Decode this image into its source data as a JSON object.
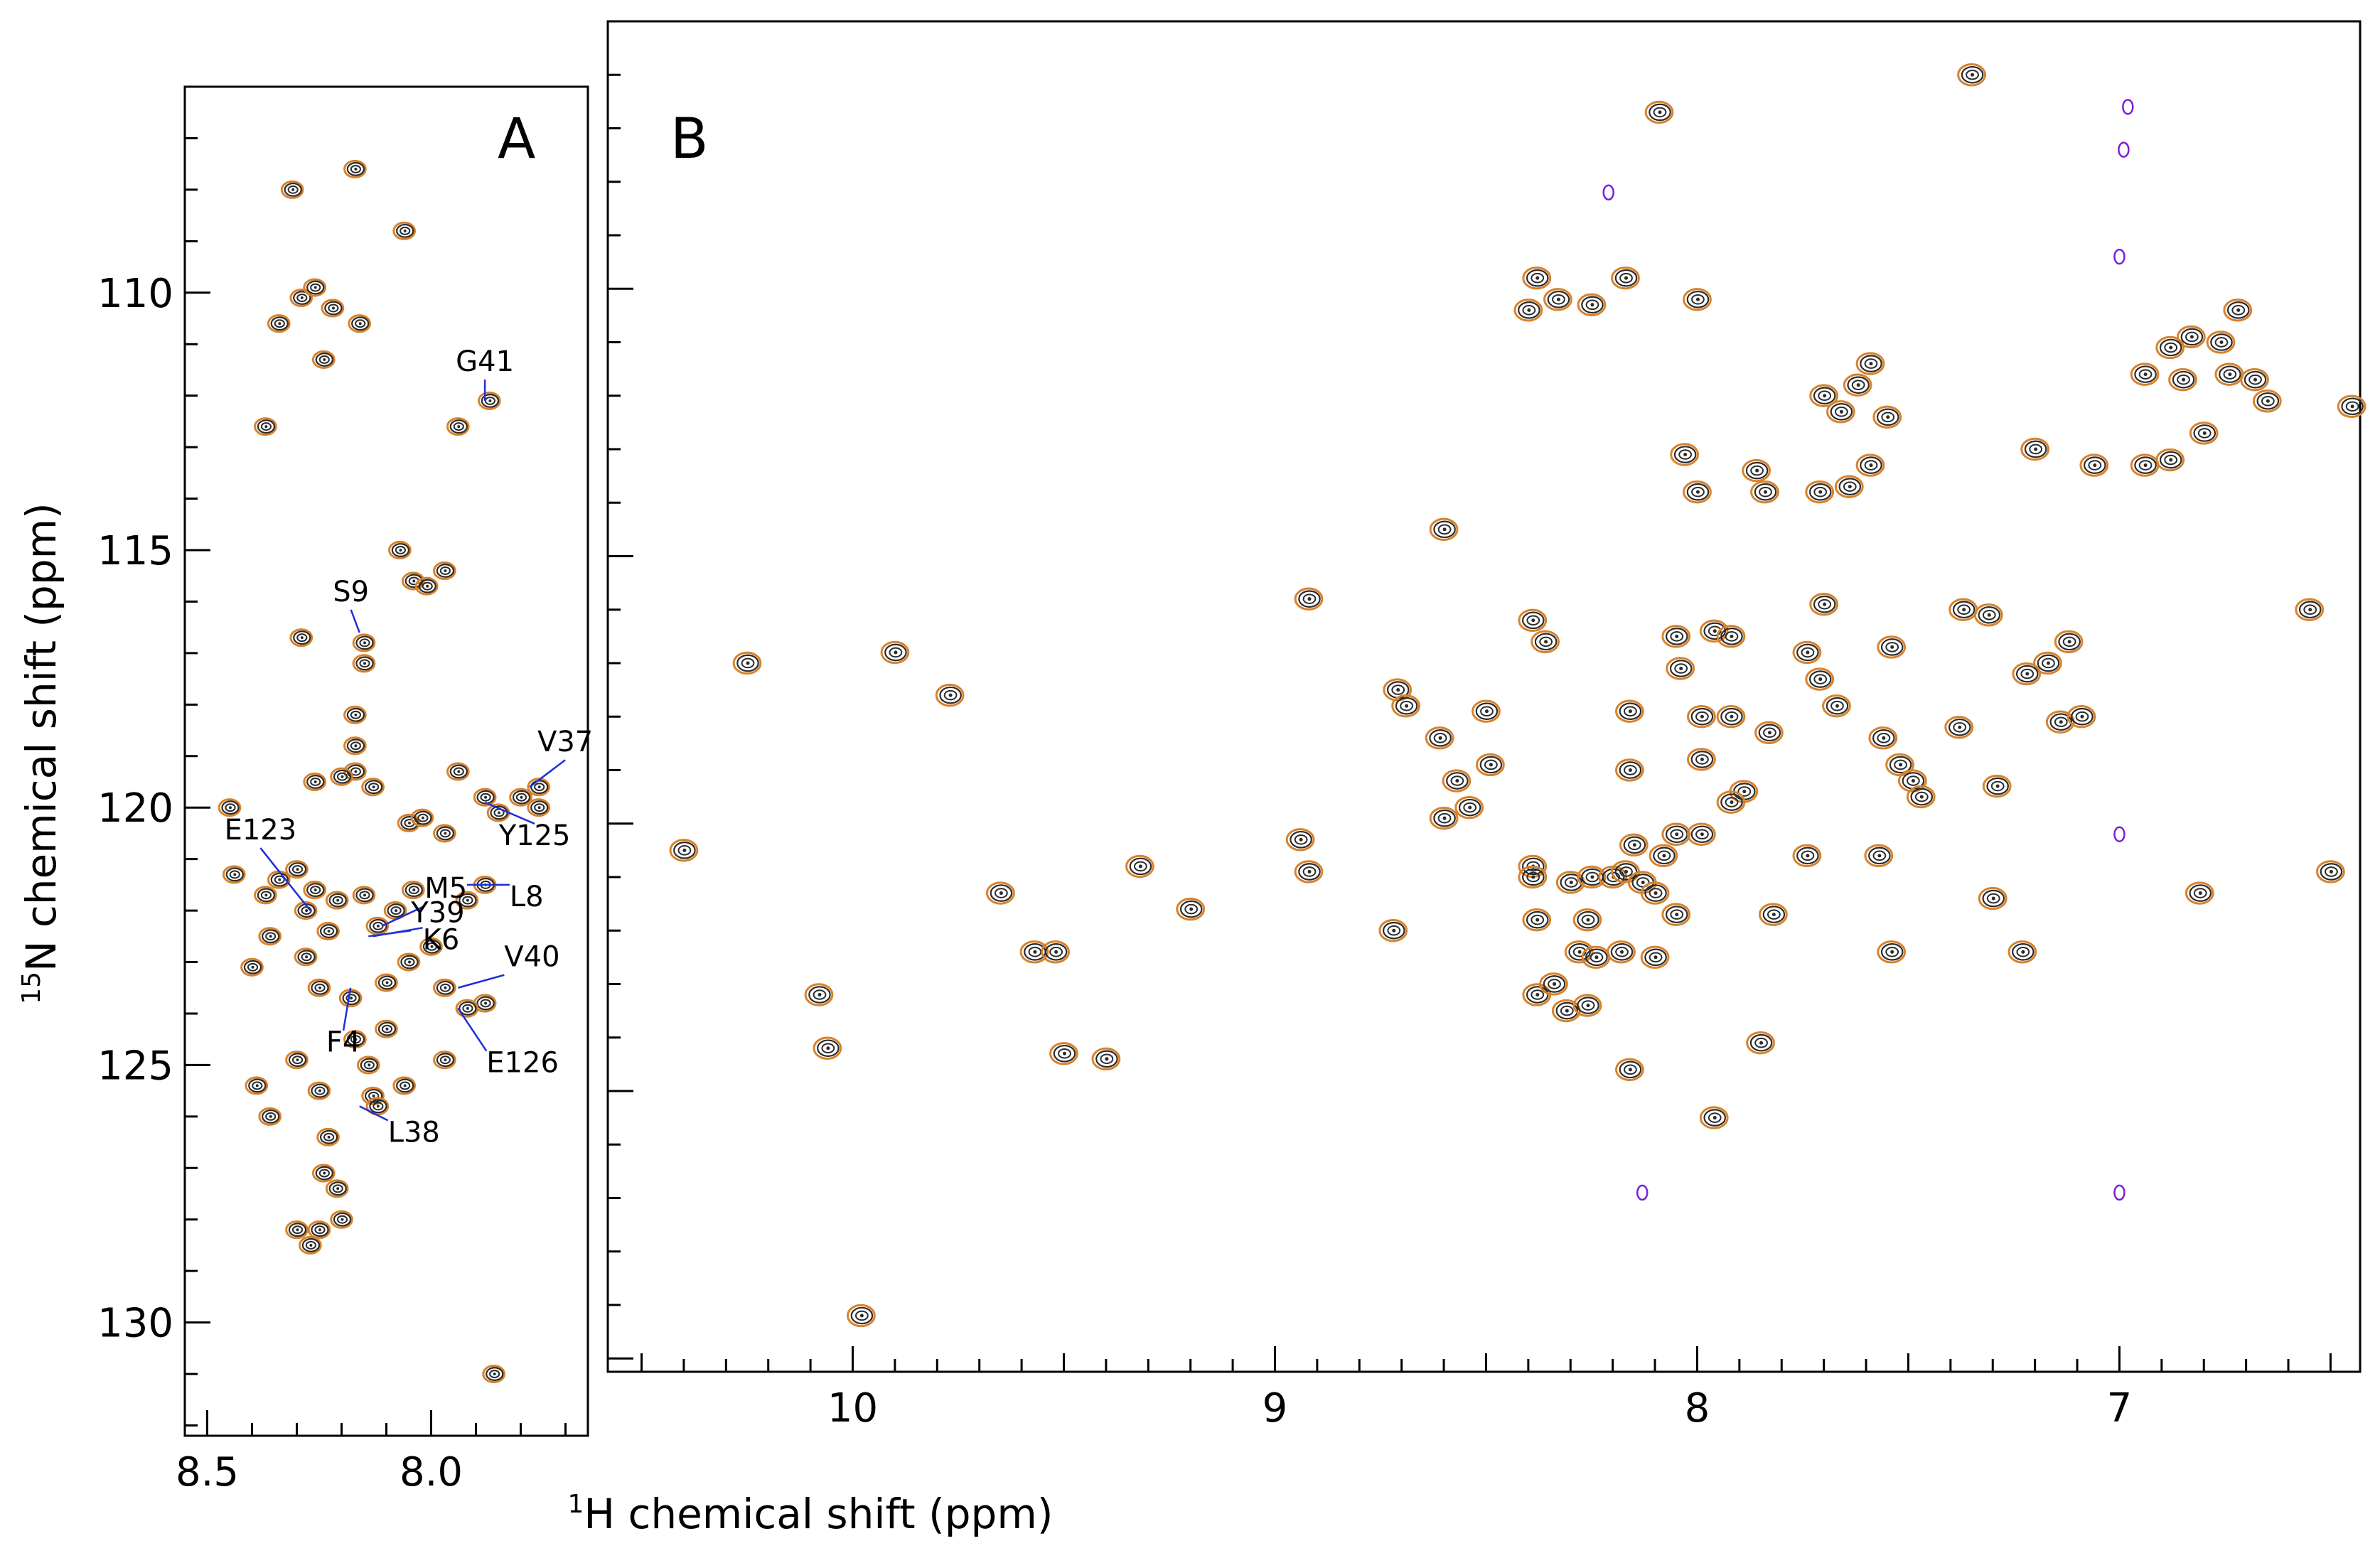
{
  "colors": {
    "spectrum_dark": "#2b2b2b",
    "spectrum_orange": "#d9822b",
    "negative": "#7a1fd6",
    "label_line": "#1f2fd6",
    "axis": "#000000"
  },
  "ylabel_iso": "15",
  "ylabel_text": "N chemical shift (ppm)",
  "xlabel_iso": "1",
  "xlabel_text": "H chemical shift (ppm)",
  "chart_data": [
    {
      "panel": "A",
      "type": "scatter",
      "xlabel": "¹H chemical shift (ppm)",
      "ylabel": "¹⁵N chemical shift (ppm)",
      "xlim": [
        8.55,
        7.65
      ],
      "ylim": [
        106.0,
        132.2
      ],
      "xticks": [
        "8.5",
        "8.0"
      ],
      "xtick_values": [
        8.5,
        8.0
      ],
      "yticks": [
        "110",
        "115",
        "120",
        "125",
        "130"
      ],
      "ytick_values": [
        110,
        115,
        120,
        125,
        130
      ],
      "peaks": [
        [
          8.31,
          108.0
        ],
        [
          8.17,
          107.6
        ],
        [
          8.06,
          108.8
        ],
        [
          8.37,
          112.6
        ],
        [
          8.24,
          111.3
        ],
        [
          8.16,
          110.6
        ],
        [
          8.34,
          110.6
        ],
        [
          8.29,
          110.1
        ],
        [
          8.22,
          110.3
        ],
        [
          8.26,
          109.9
        ],
        [
          7.94,
          112.6
        ],
        [
          7.87,
          112.1
        ],
        [
          8.07,
          115.0
        ],
        [
          8.04,
          115.6
        ],
        [
          7.97,
          115.4
        ],
        [
          8.01,
          115.7
        ],
        [
          8.29,
          116.7
        ],
        [
          8.15,
          116.8
        ],
        [
          8.15,
          117.2
        ],
        [
          8.17,
          118.2
        ],
        [
          8.17,
          118.8
        ],
        [
          8.17,
          119.3
        ],
        [
          8.45,
          120.0
        ],
        [
          8.44,
          121.3
        ],
        [
          8.37,
          121.7
        ],
        [
          8.34,
          121.4
        ],
        [
          8.26,
          119.5
        ],
        [
          8.2,
          119.4
        ],
        [
          8.13,
          119.6
        ],
        [
          8.05,
          120.3
        ],
        [
          8.02,
          120.2
        ],
        [
          7.97,
          120.5
        ],
        [
          7.94,
          119.3
        ],
        [
          7.88,
          119.8
        ],
        [
          7.85,
          120.1
        ],
        [
          7.8,
          119.8
        ],
        [
          7.76,
          119.6
        ],
        [
          7.76,
          120.0
        ],
        [
          7.92,
          121.8
        ],
        [
          7.88,
          121.5
        ],
        [
          8.3,
          121.2
        ],
        [
          8.26,
          121.6
        ],
        [
          8.21,
          121.8
        ],
        [
          8.28,
          122.0
        ],
        [
          8.23,
          122.4
        ],
        [
          8.15,
          121.7
        ],
        [
          8.12,
          122.3
        ],
        [
          8.08,
          122.0
        ],
        [
          8.04,
          121.6
        ],
        [
          8.36,
          122.5
        ],
        [
          8.4,
          123.1
        ],
        [
          8.28,
          122.9
        ],
        [
          8.25,
          123.5
        ],
        [
          8.18,
          123.7
        ],
        [
          8.1,
          123.4
        ],
        [
          8.05,
          123.0
        ],
        [
          8.0,
          122.7
        ],
        [
          7.97,
          123.5
        ],
        [
          7.88,
          123.8
        ],
        [
          7.92,
          123.9
        ],
        [
          7.97,
          124.9
        ],
        [
          8.1,
          124.3
        ],
        [
          8.17,
          124.5
        ],
        [
          8.39,
          125.4
        ],
        [
          8.36,
          126.0
        ],
        [
          8.3,
          124.9
        ],
        [
          8.25,
          125.5
        ],
        [
          8.14,
          125.0
        ],
        [
          8.13,
          125.6
        ],
        [
          8.06,
          125.4
        ],
        [
          8.12,
          125.8
        ],
        [
          8.23,
          126.4
        ],
        [
          8.24,
          127.1
        ],
        [
          8.21,
          127.4
        ],
        [
          8.3,
          128.2
        ],
        [
          8.25,
          128.2
        ],
        [
          8.2,
          128.0
        ],
        [
          8.27,
          128.5
        ],
        [
          7.86,
          131.0
        ]
      ],
      "annotations": [
        {
          "label": "G41",
          "x": 7.88,
          "y": 112.1
        },
        {
          "label": "S9",
          "x": 8.16,
          "y": 116.6
        },
        {
          "label": "V37",
          "x": 7.78,
          "y": 119.6
        },
        {
          "label": "Y125",
          "x": 7.88,
          "y": 119.9
        },
        {
          "label": "E123",
          "x": 8.27,
          "y": 122.0
        },
        {
          "label": "M5",
          "x": 8.11,
          "y": 122.3
        },
        {
          "label": "L8",
          "x": 7.92,
          "y": 121.5
        },
        {
          "label": "Y39",
          "x": 8.14,
          "y": 122.5
        },
        {
          "label": "K6",
          "x": 8.13,
          "y": 122.5
        },
        {
          "label": "V40",
          "x": 7.94,
          "y": 123.5
        },
        {
          "label": "F4",
          "x": 8.18,
          "y": 123.5
        },
        {
          "label": "E126",
          "x": 7.94,
          "y": 123.9
        },
        {
          "label": "L38",
          "x": 8.16,
          "y": 125.8
        }
      ]
    },
    {
      "panel": "B",
      "type": "scatter",
      "xlabel": "¹H chemical shift (ppm)",
      "ylabel": "¹⁵N chemical shift (ppm)",
      "xlim": [
        10.58,
        6.43
      ],
      "ylim": [
        105.0,
        130.25
      ],
      "xticks": [
        "10",
        "9",
        "8",
        "7"
      ],
      "xtick_values": [
        10,
        9,
        8,
        7
      ],
      "yticks": [
        "110",
        "115",
        "120",
        "125",
        "130"
      ],
      "ytick_values": [
        110,
        115,
        120,
        125,
        130
      ],
      "peaks": [
        [
          7.35,
          106.0
        ],
        [
          8.09,
          106.7
        ],
        [
          8.38,
          109.8
        ],
        [
          8.33,
          110.2
        ],
        [
          8.4,
          110.4
        ],
        [
          8.25,
          110.3
        ],
        [
          8.17,
          109.8
        ],
        [
          8.0,
          110.2
        ],
        [
          7.59,
          111.4
        ],
        [
          7.62,
          111.8
        ],
        [
          7.66,
          112.3
        ],
        [
          7.7,
          112.0
        ],
        [
          7.55,
          112.4
        ],
        [
          7.59,
          113.3
        ],
        [
          7.71,
          113.8
        ],
        [
          7.64,
          113.7
        ],
        [
          8.0,
          113.8
        ],
        [
          8.03,
          113.1
        ],
        [
          7.86,
          113.4
        ],
        [
          7.84,
          113.8
        ],
        [
          6.83,
          110.9
        ],
        [
          6.88,
          111.1
        ],
        [
          6.76,
          111.0
        ],
        [
          6.72,
          110.4
        ],
        [
          6.94,
          111.6
        ],
        [
          6.74,
          111.6
        ],
        [
          6.85,
          111.7
        ],
        [
          6.68,
          111.7
        ],
        [
          6.65,
          112.1
        ],
        [
          6.8,
          112.7
        ],
        [
          6.88,
          113.2
        ],
        [
          6.94,
          113.3
        ],
        [
          7.2,
          113.0
        ],
        [
          7.06,
          113.3
        ],
        [
          6.45,
          112.2
        ],
        [
          8.6,
          114.5
        ],
        [
          8.92,
          115.8
        ],
        [
          10.25,
          117.0
        ],
        [
          9.9,
          116.8
        ],
        [
          9.77,
          117.6
        ],
        [
          8.39,
          116.2
        ],
        [
          8.36,
          116.6
        ],
        [
          7.96,
          116.4
        ],
        [
          8.05,
          116.5
        ],
        [
          7.92,
          116.5
        ],
        [
          8.04,
          117.1
        ],
        [
          7.7,
          115.9
        ],
        [
          7.37,
          116.0
        ],
        [
          7.31,
          116.1
        ],
        [
          6.55,
          116.0
        ],
        [
          7.12,
          116.6
        ],
        [
          7.17,
          117.0
        ],
        [
          7.22,
          117.2
        ],
        [
          7.74,
          116.8
        ],
        [
          7.71,
          117.3
        ],
        [
          7.54,
          116.7
        ],
        [
          8.5,
          117.9
        ],
        [
          8.71,
          117.5
        ],
        [
          8.69,
          117.8
        ],
        [
          8.61,
          118.4
        ],
        [
          8.57,
          119.2
        ],
        [
          8.49,
          118.9
        ],
        [
          8.6,
          119.9
        ],
        [
          8.54,
          119.7
        ],
        [
          7.99,
          118.0
        ],
        [
          8.16,
          117.9
        ],
        [
          7.92,
          118.0
        ],
        [
          7.83,
          118.3
        ],
        [
          7.67,
          117.8
        ],
        [
          7.56,
          118.4
        ],
        [
          7.52,
          118.9
        ],
        [
          7.49,
          119.2
        ],
        [
          7.47,
          119.5
        ],
        [
          7.38,
          118.2
        ],
        [
          7.29,
          119.3
        ],
        [
          7.14,
          118.1
        ],
        [
          7.09,
          118.0
        ],
        [
          8.16,
          119.0
        ],
        [
          7.99,
          118.8
        ],
        [
          7.89,
          119.4
        ],
        [
          7.92,
          119.6
        ],
        [
          7.74,
          120.6
        ],
        [
          7.57,
          120.6
        ],
        [
          10.4,
          120.5
        ],
        [
          8.94,
          120.3
        ],
        [
          8.92,
          120.9
        ],
        [
          9.32,
          120.8
        ],
        [
          9.2,
          121.6
        ],
        [
          9.65,
          121.3
        ],
        [
          9.57,
          122.4
        ],
        [
          9.52,
          122.4
        ],
        [
          8.39,
          120.8
        ],
        [
          8.39,
          121.0
        ],
        [
          8.3,
          121.1
        ],
        [
          8.25,
          121.0
        ],
        [
          8.2,
          121.0
        ],
        [
          8.17,
          120.9
        ],
        [
          8.13,
          121.1
        ],
        [
          8.1,
          121.3
        ],
        [
          8.05,
          121.7
        ],
        [
          8.08,
          120.6
        ],
        [
          8.15,
          120.4
        ],
        [
          8.05,
          120.2
        ],
        [
          7.99,
          120.2
        ],
        [
          8.38,
          121.8
        ],
        [
          8.72,
          122.0
        ],
        [
          8.26,
          121.8
        ],
        [
          8.28,
          122.4
        ],
        [
          8.24,
          122.5
        ],
        [
          8.18,
          122.4
        ],
        [
          8.1,
          122.5
        ],
        [
          7.54,
          122.4
        ],
        [
          7.3,
          121.4
        ],
        [
          6.81,
          121.3
        ],
        [
          7.23,
          122.4
        ],
        [
          6.5,
          120.9
        ],
        [
          7.82,
          121.7
        ],
        [
          10.08,
          123.2
        ],
        [
          10.06,
          124.2
        ],
        [
          9.5,
          124.3
        ],
        [
          9.4,
          124.4
        ],
        [
          8.38,
          123.2
        ],
        [
          8.34,
          123.0
        ],
        [
          8.31,
          123.5
        ],
        [
          8.26,
          123.4
        ],
        [
          8.16,
          124.6
        ],
        [
          7.96,
          125.5
        ],
        [
          7.85,
          124.1
        ],
        [
          9.98,
          129.2
        ]
      ],
      "negative_peaks": [
        [
          6.98,
          106.6
        ],
        [
          6.99,
          107.4
        ],
        [
          7.0,
          109.4
        ],
        [
          7.0,
          120.2
        ],
        [
          8.13,
          126.9
        ],
        [
          7.0,
          126.9
        ],
        [
          8.21,
          108.2
        ]
      ],
      "annotation": "B"
    }
  ]
}
